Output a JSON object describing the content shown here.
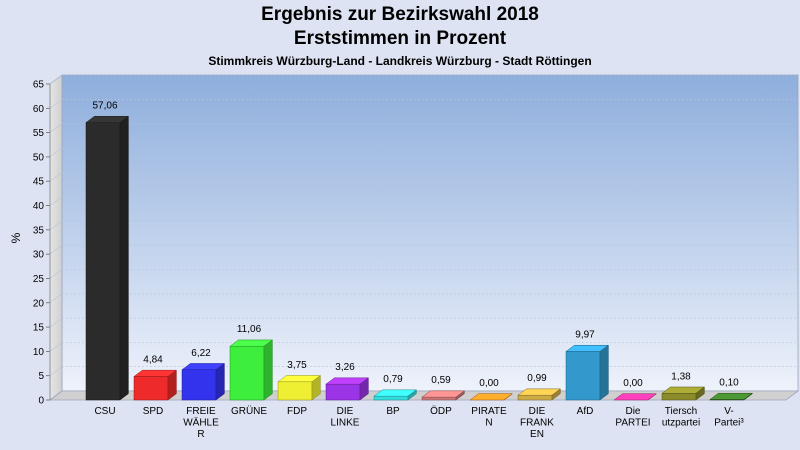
{
  "chart_data": {
    "type": "bar",
    "title": "Ergebnis zur Bezirkswahl 2018",
    "subtitle": "Erststimmen in Prozent",
    "subsubtitle": "Stimmkreis Würzburg-Land - Landkreis Würzburg - Stadt Röttingen",
    "ylabel": "%",
    "ylim": [
      0,
      65
    ],
    "yticks": [
      "0",
      "5",
      "10",
      "15",
      "20",
      "25",
      "30",
      "35",
      "40",
      "45",
      "50",
      "55",
      "60",
      "65"
    ],
    "grid": true,
    "categories": [
      [
        "CSU"
      ],
      [
        "SPD"
      ],
      [
        "FREIE",
        "WÄHLE",
        "R"
      ],
      [
        "GRÜNE"
      ],
      [
        "FDP"
      ],
      [
        "DIE",
        "LINKE"
      ],
      [
        "BP"
      ],
      [
        "ÖDP"
      ],
      [
        "PIRATE",
        "N"
      ],
      [
        "DIE",
        "FRANK",
        "EN"
      ],
      [
        "AfD"
      ],
      [
        "Die",
        "PARTEI"
      ],
      [
        "Tiersch",
        "utzpartei"
      ],
      [
        "V-",
        "Partei³"
      ]
    ],
    "values": [
      57.06,
      4.84,
      6.22,
      11.06,
      3.75,
      3.26,
      0.79,
      0.59,
      0.0,
      0.99,
      9.97,
      0.0,
      1.38,
      0.1
    ],
    "value_labels": [
      "57,06",
      "4,84",
      "6,22",
      "11,06",
      "3,75",
      "3,26",
      "0,79",
      "0,59",
      "0,00",
      "0,99",
      "9,97",
      "0,00",
      "1,38",
      "0,10"
    ],
    "colors": [
      "#2b2b2b",
      "#ee2a2a",
      "#3333ee",
      "#3dee3d",
      "#eeee33",
      "#9b33e6",
      "#33dddd",
      "#cc7777",
      "#ff8c22",
      "#ccaa44",
      "#3399cc",
      "#ee3399",
      "#8b8b2b",
      "#3d7a2b"
    ]
  }
}
